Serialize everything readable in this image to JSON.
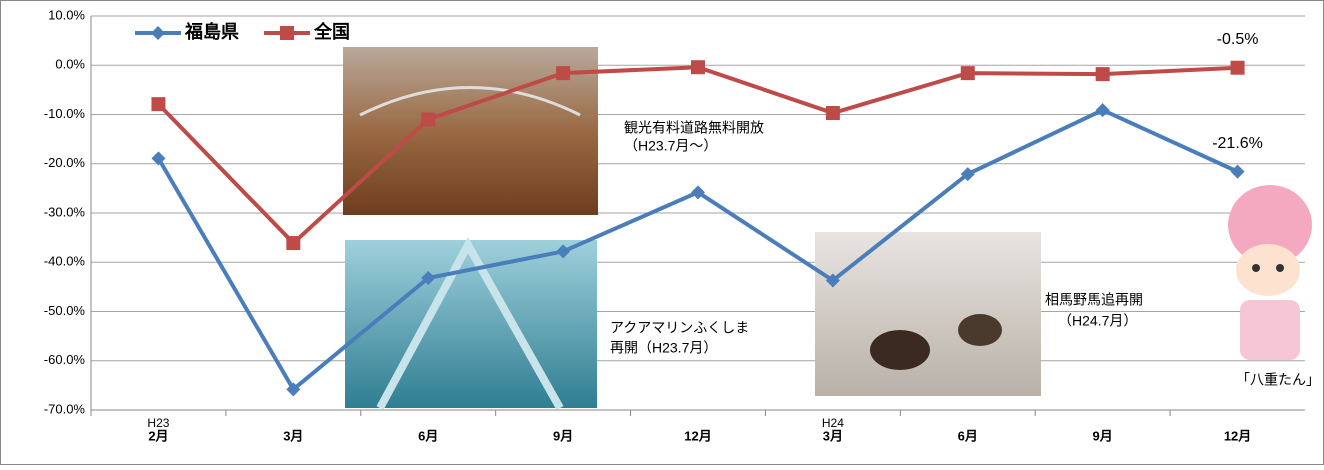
{
  "chart_data": {
    "type": "line",
    "categories": [
      "2月",
      "3月",
      "6月",
      "9月",
      "12月",
      "3月",
      "6月",
      "9月",
      "12月"
    ],
    "category_group_labels": [
      "H23",
      null,
      null,
      null,
      null,
      "H24",
      null,
      null,
      null
    ],
    "series": [
      {
        "name": "福島県",
        "color": "#4a7ebb",
        "marker": "diamond",
        "values": [
          -18.9,
          -65.8,
          -43.2,
          -37.8,
          -25.8,
          -43.7,
          -22.1,
          -9.1,
          -21.6
        ],
        "value_labels": [
          null,
          null,
          null,
          null,
          null,
          null,
          null,
          null,
          "-21.6%"
        ]
      },
      {
        "name": "全国",
        "color": "#be4b48",
        "marker": "square",
        "values": [
          -7.9,
          -36.1,
          -11.0,
          -1.6,
          -0.4,
          -9.7,
          -1.6,
          -1.8,
          -0.5
        ],
        "value_labels": [
          null,
          null,
          null,
          null,
          null,
          null,
          null,
          null,
          "-0.5%"
        ]
      }
    ],
    "ylim": [
      -70,
      10
    ],
    "yticks": [
      {
        "value": 10,
        "label": "10.0%"
      },
      {
        "value": 0,
        "label": "0.0%"
      },
      {
        "value": -10,
        "label": "-10.0%"
      },
      {
        "value": -20,
        "label": "-20.0%"
      },
      {
        "value": -30,
        "label": "-30.0%"
      },
      {
        "value": -40,
        "label": "-40.0%"
      },
      {
        "value": -50,
        "label": "-50.0%"
      },
      {
        "value": -60,
        "label": "-60.0%"
      },
      {
        "value": -70,
        "label": "-70.0%"
      }
    ],
    "grid": true,
    "legend": "top-left",
    "annotations": [
      "観光有料道路無料開放",
      "（H23.7月～）",
      "アクアマリンふくしま",
      "再開（H23.7月）",
      "相馬野馬追再開",
      "（H24.7月）",
      "「八重たん」"
    ]
  }
}
